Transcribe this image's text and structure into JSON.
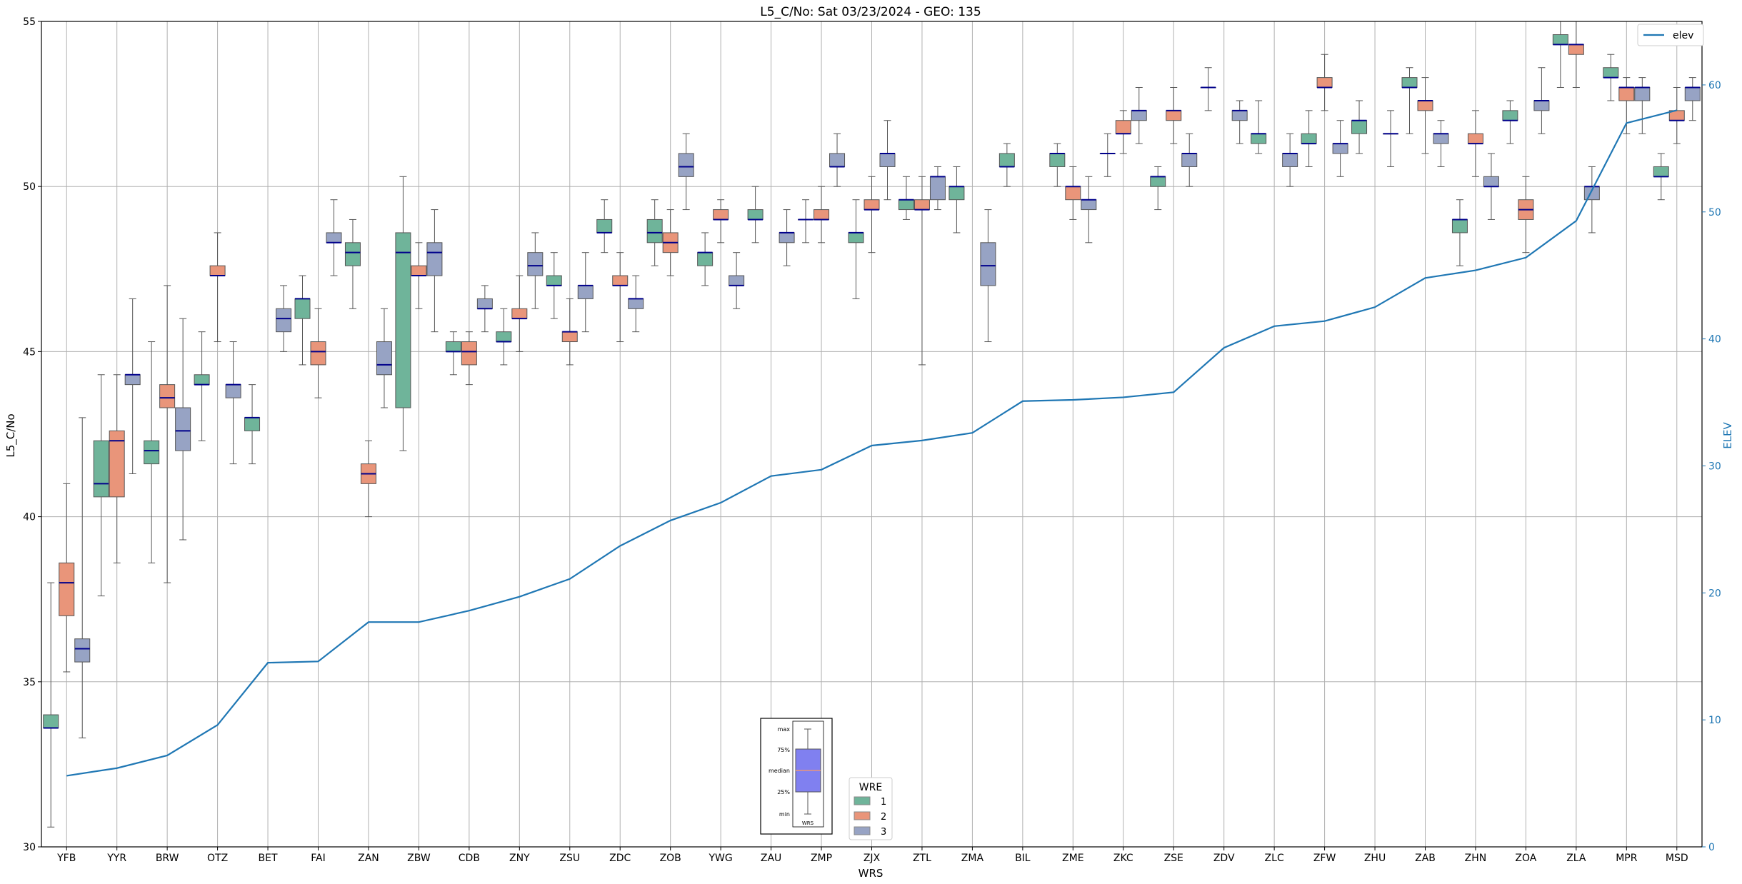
{
  "chart_data": {
    "type": "box",
    "title": "L5_C/No: Sat 03/23/2024 - GEO: 135",
    "xlabel": "WRS",
    "ylabel": "L5_C/No",
    "y2label": "ELEV",
    "ylim": [
      30,
      55
    ],
    "y2lim": [
      0,
      65
    ],
    "yticks": [
      30,
      35,
      40,
      45,
      50,
      55
    ],
    "y2ticks": [
      0,
      10,
      20,
      30,
      40,
      50,
      60
    ],
    "grid": true,
    "categories": [
      "YFB",
      "YYR",
      "BRW",
      "OTZ",
      "BET",
      "FAI",
      "ZAN",
      "ZBW",
      "CDB",
      "ZNY",
      "ZSU",
      "ZDC",
      "ZOB",
      "YWG",
      "ZAU",
      "ZMP",
      "ZJX",
      "ZTL",
      "ZMA",
      "BIL",
      "ZME",
      "ZKC",
      "ZSE",
      "ZDV",
      "ZLC",
      "ZFW",
      "ZHU",
      "ZAB",
      "ZHN",
      "ZOA",
      "ZLA",
      "MPR",
      "MSD"
    ],
    "colors": {
      "wre_1": "#6fb49a",
      "wre_2": "#e9957a",
      "wre_3": "#97a3c4",
      "median": "#00008b",
      "elev": "#1f77b4",
      "whisker": "#555555",
      "grid": "#b0b0b0",
      "y2_axis": "#1f77b4"
    },
    "series": [
      {
        "name": "1",
        "boxes": [
          {
            "c": 0,
            "min": 30.6,
            "q1": 33.6,
            "med": 33.6,
            "q3": 34.0,
            "max": 38.0
          },
          {
            "c": 1,
            "min": 37.6,
            "q1": 40.6,
            "med": 41.0,
            "q3": 42.3,
            "max": 44.3
          },
          {
            "c": 2,
            "min": 38.6,
            "q1": 41.6,
            "med": 42.0,
            "q3": 42.3,
            "max": 45.3
          },
          {
            "c": 3,
            "min": 42.3,
            "q1": 44.0,
            "med": 44.0,
            "q3": 44.3,
            "max": 45.6
          },
          {
            "c": 4,
            "min": 41.6,
            "q1": 42.6,
            "med": 43.0,
            "q3": 43.0,
            "max": 44.0
          },
          {
            "c": 5,
            "min": 44.6,
            "q1": 46.0,
            "med": 46.6,
            "q3": 46.6,
            "max": 47.3
          },
          {
            "c": 6,
            "min": 46.3,
            "q1": 47.6,
            "med": 48.0,
            "q3": 48.3,
            "max": 49.0
          },
          {
            "c": 7,
            "min": 42.0,
            "q1": 43.3,
            "med": 48.0,
            "q3": 48.6,
            "max": 50.3
          },
          {
            "c": 8,
            "min": 44.3,
            "q1": 45.0,
            "med": 45.0,
            "q3": 45.3,
            "max": 45.6
          },
          {
            "c": 9,
            "min": 44.6,
            "q1": 45.3,
            "med": 45.3,
            "q3": 45.6,
            "max": 46.3
          },
          {
            "c": 10,
            "min": 46.0,
            "q1": 47.0,
            "med": 47.0,
            "q3": 47.3,
            "max": 48.0
          },
          {
            "c": 11,
            "min": 48.0,
            "q1": 48.6,
            "med": 48.6,
            "q3": 49.0,
            "max": 49.6
          },
          {
            "c": 12,
            "min": 47.6,
            "q1": 48.3,
            "med": 48.6,
            "q3": 49.0,
            "max": 49.6
          },
          {
            "c": 13,
            "min": 47.0,
            "q1": 47.6,
            "med": 48.0,
            "q3": 48.0,
            "max": 48.6
          },
          {
            "c": 14,
            "min": 48.3,
            "q1": 49.0,
            "med": 49.0,
            "q3": 49.3,
            "max": 50.0
          },
          {
            "c": 15,
            "min": 48.3,
            "q1": 49.0,
            "med": 49.0,
            "q3": 49.0,
            "max": 49.6
          },
          {
            "c": 16,
            "min": 46.6,
            "q1": 48.3,
            "med": 48.6,
            "q3": 48.6,
            "max": 49.6
          },
          {
            "c": 17,
            "min": 49.0,
            "q1": 49.3,
            "med": 49.6,
            "q3": 49.6,
            "max": 50.3
          },
          {
            "c": 18,
            "min": 48.6,
            "q1": 49.6,
            "med": 50.0,
            "q3": 50.0,
            "max": 50.6
          },
          {
            "c": 19,
            "min": 50.0,
            "q1": 50.6,
            "med": 50.6,
            "q3": 51.0,
            "max": 51.3
          },
          {
            "c": 20,
            "min": 50.0,
            "q1": 50.6,
            "med": 51.0,
            "q3": 51.0,
            "max": 51.3
          },
          {
            "c": 21,
            "min": 50.3,
            "q1": 51.0,
            "med": 51.0,
            "q3": 51.0,
            "max": 51.6
          },
          {
            "c": 22,
            "min": 49.3,
            "q1": 50.0,
            "med": 50.3,
            "q3": 50.3,
            "max": 50.6
          },
          {
            "c": 23,
            "min": 52.3,
            "q1": 53.0,
            "med": 53.0,
            "q3": 53.0,
            "max": 53.6
          },
          {
            "c": 24,
            "min": 51.0,
            "q1": 51.3,
            "med": 51.6,
            "q3": 51.6,
            "max": 52.6
          },
          {
            "c": 25,
            "min": 50.6,
            "q1": 51.3,
            "med": 51.3,
            "q3": 51.6,
            "max": 52.3
          },
          {
            "c": 26,
            "min": 51.0,
            "q1": 51.6,
            "med": 52.0,
            "q3": 52.0,
            "max": 52.6
          },
          {
            "c": 27,
            "min": 51.6,
            "q1": 53.0,
            "med": 53.0,
            "q3": 53.3,
            "max": 53.6
          },
          {
            "c": 28,
            "min": 47.6,
            "q1": 48.6,
            "med": 49.0,
            "q3": 49.0,
            "max": 49.6
          },
          {
            "c": 29,
            "min": 51.3,
            "q1": 52.0,
            "med": 52.0,
            "q3": 52.3,
            "max": 52.6
          },
          {
            "c": 30,
            "min": 53.0,
            "q1": 54.3,
            "med": 54.3,
            "q3": 54.6,
            "max": 55.0
          },
          {
            "c": 31,
            "min": 52.6,
            "q1": 53.3,
            "med": 53.3,
            "q3": 53.6,
            "max": 54.0
          },
          {
            "c": 32,
            "min": 49.6,
            "q1": 50.3,
            "med": 50.3,
            "q3": 50.6,
            "max": 51.0
          }
        ]
      },
      {
        "name": "2",
        "boxes": [
          {
            "c": 0,
            "min": 35.3,
            "q1": 37.0,
            "med": 38.0,
            "q3": 38.6,
            "max": 41.0
          },
          {
            "c": 1,
            "min": 38.6,
            "q1": 40.6,
            "med": 42.3,
            "q3": 42.6,
            "max": 44.3
          },
          {
            "c": 2,
            "min": 38.0,
            "q1": 43.3,
            "med": 43.6,
            "q3": 44.0,
            "max": 47.0
          },
          {
            "c": 3,
            "min": 45.3,
            "q1": 47.3,
            "med": 47.3,
            "q3": 47.6,
            "max": 48.6
          },
          {
            "c": 5,
            "min": 43.6,
            "q1": 44.6,
            "med": 45.0,
            "q3": 45.3,
            "max": 46.3
          },
          {
            "c": 6,
            "min": 40.0,
            "q1": 41.0,
            "med": 41.3,
            "q3": 41.6,
            "max": 42.3
          },
          {
            "c": 7,
            "min": 46.3,
            "q1": 47.3,
            "med": 47.3,
            "q3": 47.6,
            "max": 48.3
          },
          {
            "c": 8,
            "min": 44.0,
            "q1": 44.6,
            "med": 45.0,
            "q3": 45.3,
            "max": 45.6
          },
          {
            "c": 9,
            "min": 45.0,
            "q1": 46.0,
            "med": 46.0,
            "q3": 46.3,
            "max": 47.3
          },
          {
            "c": 10,
            "min": 44.6,
            "q1": 45.3,
            "med": 45.6,
            "q3": 45.6,
            "max": 46.6
          },
          {
            "c": 11,
            "min": 45.3,
            "q1": 47.0,
            "med": 47.0,
            "q3": 47.3,
            "max": 48.0
          },
          {
            "c": 12,
            "min": 47.3,
            "q1": 48.0,
            "med": 48.3,
            "q3": 48.6,
            "max": 49.3
          },
          {
            "c": 13,
            "min": 48.3,
            "q1": 49.0,
            "med": 49.0,
            "q3": 49.3,
            "max": 49.6
          },
          {
            "c": 15,
            "min": 48.3,
            "q1": 49.0,
            "med": 49.0,
            "q3": 49.3,
            "max": 50.0
          },
          {
            "c": 16,
            "min": 48.0,
            "q1": 49.3,
            "med": 49.3,
            "q3": 49.6,
            "max": 50.3
          },
          {
            "c": 17,
            "min": 44.6,
            "q1": 49.3,
            "med": 49.3,
            "q3": 49.6,
            "max": 50.3
          },
          {
            "c": 20,
            "min": 49.0,
            "q1": 49.6,
            "med": 50.0,
            "q3": 50.0,
            "max": 50.6
          },
          {
            "c": 21,
            "min": 51.0,
            "q1": 51.6,
            "med": 51.6,
            "q3": 52.0,
            "max": 52.3
          },
          {
            "c": 22,
            "min": 51.3,
            "q1": 52.0,
            "med": 52.3,
            "q3": 52.3,
            "max": 53.0
          },
          {
            "c": 25,
            "min": 52.3,
            "q1": 53.0,
            "med": 53.0,
            "q3": 53.3,
            "max": 54.0
          },
          {
            "c": 27,
            "min": 51.0,
            "q1": 52.3,
            "med": 52.6,
            "q3": 52.6,
            "max": 53.3
          },
          {
            "c": 28,
            "min": 50.3,
            "q1": 51.3,
            "med": 51.3,
            "q3": 51.6,
            "max": 52.3
          },
          {
            "c": 29,
            "min": 48.0,
            "q1": 49.0,
            "med": 49.3,
            "q3": 49.6,
            "max": 50.3
          },
          {
            "c": 30,
            "min": 53.0,
            "q1": 54.0,
            "med": 54.3,
            "q3": 54.3,
            "max": 55.0
          },
          {
            "c": 31,
            "min": 51.6,
            "q1": 52.6,
            "med": 53.0,
            "q3": 53.0,
            "max": 53.3
          },
          {
            "c": 32,
            "min": 51.3,
            "q1": 52.0,
            "med": 52.0,
            "q3": 52.3,
            "max": 53.0
          }
        ]
      },
      {
        "name": "3",
        "boxes": [
          {
            "c": 0,
            "min": 33.3,
            "q1": 35.6,
            "med": 36.0,
            "q3": 36.3,
            "max": 43.0
          },
          {
            "c": 1,
            "min": 41.3,
            "q1": 44.0,
            "med": 44.3,
            "q3": 44.3,
            "max": 46.6
          },
          {
            "c": 2,
            "min": 39.3,
            "q1": 42.0,
            "med": 42.6,
            "q3": 43.3,
            "max": 46.0
          },
          {
            "c": 3,
            "min": 41.6,
            "q1": 43.6,
            "med": 44.0,
            "q3": 44.0,
            "max": 45.3
          },
          {
            "c": 4,
            "min": 45.0,
            "q1": 45.6,
            "med": 46.0,
            "q3": 46.3,
            "max": 47.0
          },
          {
            "c": 5,
            "min": 47.3,
            "q1": 48.3,
            "med": 48.3,
            "q3": 48.6,
            "max": 49.6
          },
          {
            "c": 6,
            "min": 43.3,
            "q1": 44.3,
            "med": 44.6,
            "q3": 45.3,
            "max": 46.3
          },
          {
            "c": 7,
            "min": 45.6,
            "q1": 47.3,
            "med": 48.0,
            "q3": 48.3,
            "max": 49.3
          },
          {
            "c": 8,
            "min": 45.6,
            "q1": 46.3,
            "med": 46.3,
            "q3": 46.6,
            "max": 47.0
          },
          {
            "c": 9,
            "min": 46.3,
            "q1": 47.3,
            "med": 47.6,
            "q3": 48.0,
            "max": 48.6
          },
          {
            "c": 10,
            "min": 45.6,
            "q1": 46.6,
            "med": 47.0,
            "q3": 47.0,
            "max": 48.0
          },
          {
            "c": 11,
            "min": 45.6,
            "q1": 46.3,
            "med": 46.6,
            "q3": 46.6,
            "max": 47.3
          },
          {
            "c": 12,
            "min": 49.3,
            "q1": 50.3,
            "med": 50.6,
            "q3": 51.0,
            "max": 51.6
          },
          {
            "c": 13,
            "min": 46.3,
            "q1": 47.0,
            "med": 47.0,
            "q3": 47.3,
            "max": 48.0
          },
          {
            "c": 14,
            "min": 47.6,
            "q1": 48.3,
            "med": 48.6,
            "q3": 48.6,
            "max": 49.3
          },
          {
            "c": 15,
            "min": 50.0,
            "q1": 50.6,
            "med": 50.6,
            "q3": 51.0,
            "max": 51.6
          },
          {
            "c": 16,
            "min": 49.6,
            "q1": 50.6,
            "med": 51.0,
            "q3": 51.0,
            "max": 52.0
          },
          {
            "c": 17,
            "min": 49.3,
            "q1": 49.6,
            "med": 50.3,
            "q3": 50.3,
            "max": 50.6
          },
          {
            "c": 18,
            "min": 45.3,
            "q1": 47.0,
            "med": 47.6,
            "q3": 48.3,
            "max": 49.3
          },
          {
            "c": 20,
            "min": 48.3,
            "q1": 49.3,
            "med": 49.6,
            "q3": 49.6,
            "max": 50.3
          },
          {
            "c": 21,
            "min": 51.3,
            "q1": 52.0,
            "med": 52.3,
            "q3": 52.3,
            "max": 53.0
          },
          {
            "c": 22,
            "min": 50.0,
            "q1": 50.6,
            "med": 51.0,
            "q3": 51.0,
            "max": 51.6
          },
          {
            "c": 23,
            "min": 51.3,
            "q1": 52.0,
            "med": 52.3,
            "q3": 52.3,
            "max": 52.6
          },
          {
            "c": 24,
            "min": 50.0,
            "q1": 50.6,
            "med": 51.0,
            "q3": 51.0,
            "max": 51.6
          },
          {
            "c": 25,
            "min": 50.3,
            "q1": 51.0,
            "med": 51.3,
            "q3": 51.3,
            "max": 52.0
          },
          {
            "c": 26,
            "min": 50.6,
            "q1": 51.6,
            "med": 51.6,
            "q3": 51.6,
            "max": 52.3
          },
          {
            "c": 27,
            "min": 50.6,
            "q1": 51.3,
            "med": 51.6,
            "q3": 51.6,
            "max": 52.0
          },
          {
            "c": 28,
            "min": 49.0,
            "q1": 50.0,
            "med": 50.0,
            "q3": 50.3,
            "max": 51.0
          },
          {
            "c": 29,
            "min": 51.6,
            "q1": 52.3,
            "med": 52.6,
            "q3": 52.6,
            "max": 53.6
          },
          {
            "c": 30,
            "min": 48.6,
            "q1": 49.6,
            "med": 50.0,
            "q3": 50.0,
            "max": 50.6
          },
          {
            "c": 31,
            "min": 51.6,
            "q1": 52.6,
            "med": 53.0,
            "q3": 53.0,
            "max": 53.3
          },
          {
            "c": 32,
            "min": 52.0,
            "q1": 52.6,
            "med": 53.0,
            "q3": 53.0,
            "max": 53.3
          }
        ]
      }
    ],
    "elev": {
      "name": "elev",
      "values": [
        5.6,
        6.2,
        7.2,
        9.6,
        14.5,
        14.6,
        17.7,
        17.7,
        18.6,
        19.7,
        21.1,
        23.7,
        25.7,
        27.1,
        29.2,
        29.7,
        31.6,
        32.0,
        32.6,
        35.1,
        35.2,
        35.4,
        35.8,
        39.3,
        41.0,
        41.4,
        42.5,
        44.8,
        45.4,
        46.4,
        49.3,
        57.0,
        58.0
      ]
    },
    "legend": {
      "title": "WRE",
      "labels": [
        "1",
        "2",
        "3"
      ],
      "placement": "bottom-center",
      "elev_placement": "upper-right"
    },
    "inset": {
      "labels": [
        "max",
        "75%",
        "median",
        "25%",
        "min"
      ],
      "xlabel": "WRS",
      "color": "#8080f0"
    }
  }
}
